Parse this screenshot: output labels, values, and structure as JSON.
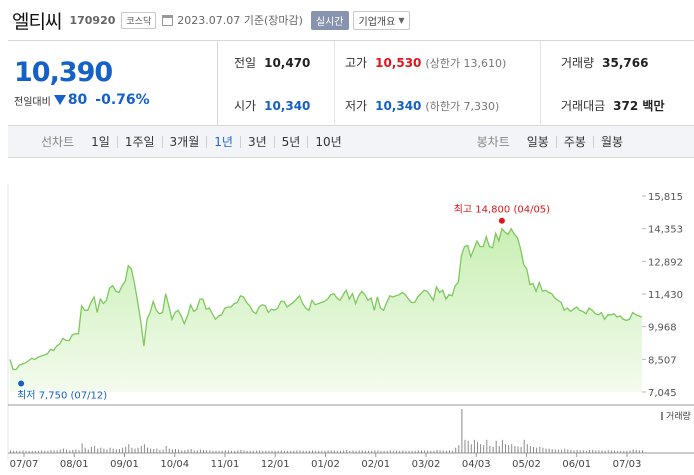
{
  "header": {
    "name": "엘티씨",
    "code": "170920",
    "market": "코스닥",
    "date": "2023.07.07 기준(장마감)",
    "realtime": "실시간",
    "company_info": "기업개요"
  },
  "price": {
    "current": "10,390",
    "change_label": "전일대비",
    "change": "80",
    "change_pct": "-0.76%",
    "direction": "down",
    "color": "#1560c9"
  },
  "stats": {
    "prev": {
      "label": "전일",
      "value": "10,470"
    },
    "high": {
      "label": "고가",
      "value": "10,530",
      "sub": "(상한가 13,610)"
    },
    "volume": {
      "label": "거래량",
      "value": "35,766"
    },
    "open": {
      "label": "시가",
      "value": "10,340"
    },
    "low": {
      "label": "저가",
      "value": "10,340",
      "sub": "(하한가 7,330)"
    },
    "amount": {
      "label": "거래대금",
      "value": "372 백만"
    }
  },
  "toolbar": {
    "line_label": "선차트",
    "periods": [
      "1일",
      "1주일",
      "3개월",
      "1년",
      "3년",
      "5년",
      "10년"
    ],
    "active_period": "1년",
    "candle_label": "봉차트",
    "candles": [
      "일봉",
      "주봉",
      "월봉"
    ]
  },
  "chart_data": {
    "type": "area",
    "y_ticks": [
      "15,815",
      "14,353",
      "12,892",
      "11,430",
      "9,968",
      "8,507",
      "7,045"
    ],
    "ylim": [
      7045,
      15815
    ],
    "x_ticks": [
      "07/07",
      "08/01",
      "09/01",
      "10/04",
      "11/01",
      "12/01",
      "01/02",
      "02/01",
      "03/02",
      "04/03",
      "05/02",
      "06/01",
      "07/03"
    ],
    "high_label": "최고 14,800 (04/05)",
    "low_label": "최저 7,750 (07/12)",
    "volume_label": "거래량",
    "colors": {
      "line": "#7dc95e",
      "fill_top": "#c9efb4",
      "fill_bottom": "#f3fbee",
      "high": "#e0161b",
      "low": "#1560c9"
    },
    "values": [
      8500,
      8050,
      8050,
      8250,
      8300,
      8350,
      8450,
      8550,
      8500,
      8600,
      8650,
      8700,
      8750,
      8950,
      8900,
      9100,
      9200,
      9450,
      9350,
      9350,
      9600,
      9650,
      9650,
      10900,
      10700,
      10700,
      11050,
      11300,
      10600,
      11200,
      11000,
      11150,
      11700,
      11800,
      11550,
      11500,
      11800,
      12000,
      12700,
      12550,
      11900,
      11100,
      10200,
      9100,
      10300,
      10600,
      11100,
      10700,
      10550,
      10600,
      11450,
      10900,
      10300,
      10600,
      10700,
      10450,
      10100,
      10450,
      10950,
      10650,
      10750,
      11200,
      11200,
      10750,
      10800,
      10550,
      10300,
      10450,
      10500,
      10800,
      10850,
      10850,
      11000,
      11050,
      11350,
      11300,
      11050,
      10900,
      10650,
      10550,
      10850,
      10950,
      10900,
      10600,
      10750,
      10700,
      10800,
      11100,
      11100,
      10850,
      10950,
      11050,
      11200,
      11350,
      11000,
      10800,
      10700,
      11150,
      10950,
      11000,
      11050,
      11100,
      11200,
      11400,
      11450,
      11250,
      11150,
      11400,
      11600,
      11200,
      11450,
      11000,
      11350,
      11550,
      11400,
      11150,
      11250,
      10700,
      11300,
      10800,
      10700,
      11050,
      11350,
      11300,
      11350,
      11400,
      11500,
      11400,
      11200,
      11050,
      11050,
      11300,
      11450,
      11600,
      11550,
      11350,
      11150,
      11750,
      11500,
      11600,
      11200,
      11400,
      11350,
      11800,
      11950,
      13150,
      13550,
      13600,
      13100,
      13450,
      13800,
      13550,
      13550,
      14000,
      13550,
      13500,
      14150,
      13800,
      14350,
      14200,
      14100,
      14350,
      14100,
      13950,
      13450,
      12750,
      12550,
      11850,
      11900,
      11550,
      11950,
      11550,
      11600,
      11500,
      11450,
      11250,
      11150,
      11050,
      10700,
      10800,
      10650,
      10750,
      10850,
      10700,
      10650,
      10550,
      10800,
      10700,
      10550,
      10500,
      10600,
      10300,
      10500,
      10500,
      10550,
      10400,
      10450,
      10300,
      10250,
      10300,
      10600,
      10500,
      10450,
      10390
    ],
    "volume": [
      0.06,
      0.05,
      0.05,
      0.05,
      0.06,
      0.05,
      0.05,
      0.04,
      0.05,
      0.05,
      0.06,
      0.05,
      0.05,
      0.07,
      0.06,
      0.06,
      0.08,
      0.1,
      0.08,
      0.06,
      0.07,
      0.08,
      0.06,
      0.22,
      0.12,
      0.08,
      0.14,
      0.16,
      0.1,
      0.12,
      0.1,
      0.08,
      0.12,
      0.1,
      0.08,
      0.09,
      0.12,
      0.14,
      0.2,
      0.12,
      0.1,
      0.12,
      0.16,
      0.2,
      0.12,
      0.1,
      0.09,
      0.1,
      0.07,
      0.08,
      0.16,
      0.1,
      0.08,
      0.09,
      0.08,
      0.06,
      0.06,
      0.08,
      0.09,
      0.06,
      0.06,
      0.08,
      0.07,
      0.06,
      0.06,
      0.05,
      0.05,
      0.05,
      0.05,
      0.06,
      0.06,
      0.05,
      0.05,
      0.06,
      0.07,
      0.06,
      0.05,
      0.05,
      0.05,
      0.05,
      0.06,
      0.05,
      0.05,
      0.05,
      0.05,
      0.05,
      0.05,
      0.06,
      0.05,
      0.05,
      0.05,
      0.05,
      0.06,
      0.06,
      0.05,
      0.05,
      0.05,
      0.06,
      0.05,
      0.05,
      0.05,
      0.05,
      0.06,
      0.06,
      0.06,
      0.05,
      0.05,
      0.06,
      0.07,
      0.05,
      0.06,
      0.05,
      0.06,
      0.06,
      0.05,
      0.05,
      0.05,
      0.06,
      0.06,
      0.05,
      0.05,
      0.05,
      0.06,
      0.05,
      0.05,
      0.05,
      0.06,
      0.05,
      0.05,
      0.05,
      0.05,
      0.06,
      0.06,
      0.06,
      0.06,
      0.05,
      0.05,
      0.07,
      0.06,
      0.06,
      0.05,
      0.06,
      0.05,
      0.12,
      0.18,
      1.0,
      0.3,
      0.28,
      0.2,
      0.3,
      0.25,
      0.2,
      0.18,
      0.3,
      0.16,
      0.14,
      0.28,
      0.16,
      0.3,
      0.2,
      0.18,
      0.2,
      0.16,
      0.15,
      0.14,
      0.3,
      0.2,
      0.16,
      0.14,
      0.12,
      0.14,
      0.12,
      0.1,
      0.1,
      0.09,
      0.08,
      0.08,
      0.07,
      0.1,
      0.08,
      0.07,
      0.06,
      0.07,
      0.06,
      0.06,
      0.05,
      0.07,
      0.07,
      0.06,
      0.06,
      0.06,
      0.05,
      0.06,
      0.06,
      0.06,
      0.05,
      0.05,
      0.05,
      0.05,
      0.06,
      0.08,
      0.07,
      0.06,
      0.06
    ]
  }
}
